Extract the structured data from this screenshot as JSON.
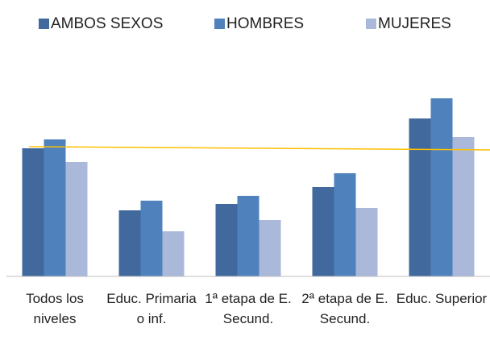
{
  "chart_data": {
    "type": "bar",
    "categories": [
      "Todos los niveles",
      "Educ. Primaria o inf.",
      "1ª etapa de E. Secund.",
      "2ª etapa de E. Secund.",
      "Educ. Superior"
    ],
    "series": [
      {
        "name": "AMBOS SEXOS",
        "color": "#41699e",
        "values": [
          159,
          82,
          90,
          111,
          196
        ]
      },
      {
        "name": "HOMBRES",
        "color": "#4f81bd",
        "values": [
          170,
          94,
          100,
          128,
          221
        ]
      },
      {
        "name": "MUJERES",
        "color": "#aab9d9",
        "values": [
          142,
          56,
          70,
          85,
          173
        ]
      }
    ],
    "trendline": {
      "color": "#ffc000",
      "values": [
        161,
        157
      ]
    },
    "ylim": [
      0,
      230
    ],
    "legend": "top"
  }
}
